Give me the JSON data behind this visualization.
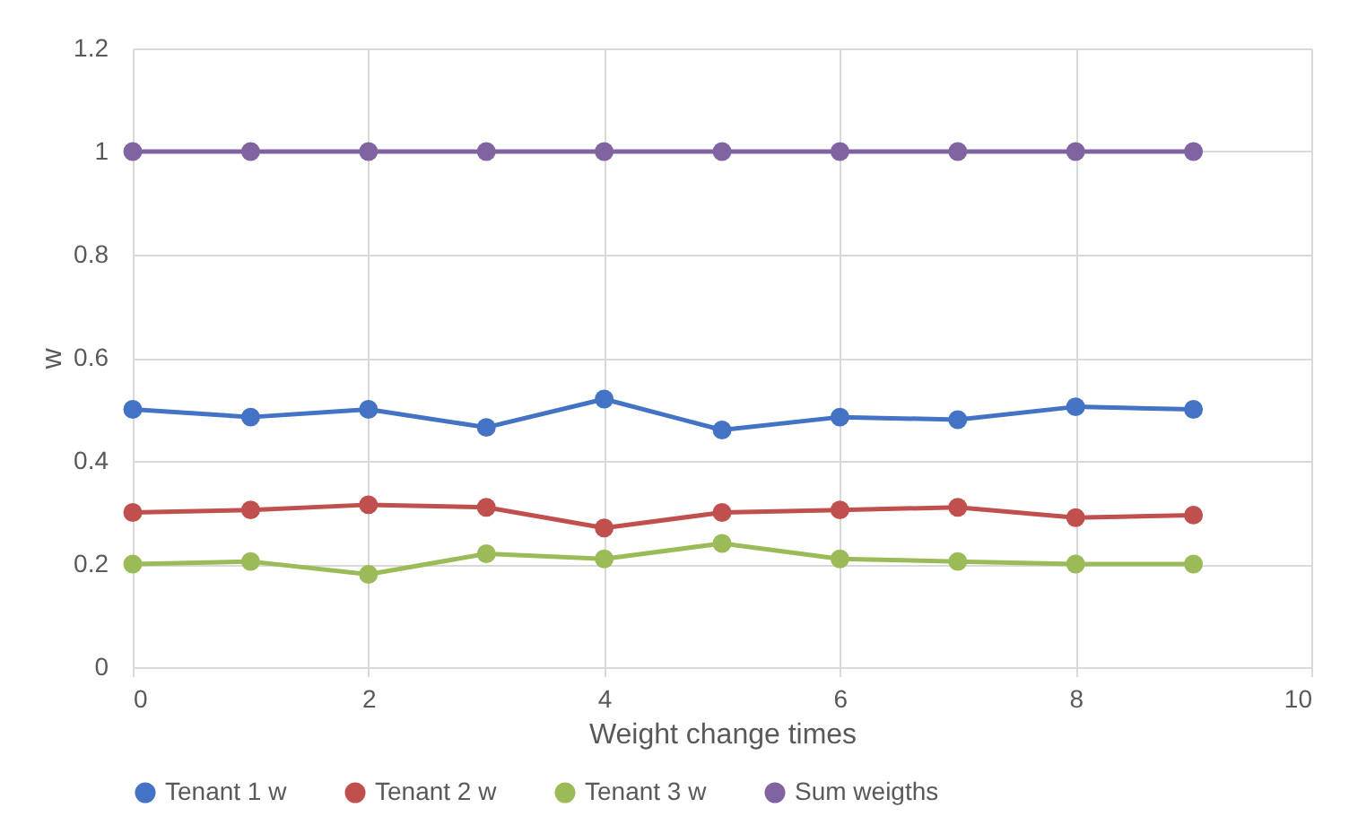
{
  "chart_data": {
    "type": "line",
    "xlabel": "Weight change times",
    "ylabel": "w",
    "x": [
      0,
      1,
      2,
      3,
      4,
      5,
      6,
      7,
      8,
      9
    ],
    "series": [
      {
        "name": "Tenant 1 w",
        "color": "#4472c4",
        "values": [
          0.5,
          0.485,
          0.5,
          0.465,
          0.52,
          0.46,
          0.485,
          0.48,
          0.505,
          0.5
        ]
      },
      {
        "name": "Tenant 2 w",
        "color": "#c0504d",
        "values": [
          0.3,
          0.305,
          0.315,
          0.31,
          0.27,
          0.3,
          0.305,
          0.31,
          0.29,
          0.295
        ]
      },
      {
        "name": "Tenant 3 w",
        "color": "#9bbb59",
        "values": [
          0.2,
          0.205,
          0.18,
          0.22,
          0.21,
          0.24,
          0.21,
          0.205,
          0.2,
          0.2
        ]
      },
      {
        "name": "Sum weigths",
        "color": "#8064a2",
        "values": [
          1,
          1,
          1,
          1,
          1,
          1,
          1,
          1,
          1,
          1
        ]
      }
    ],
    "xlim": [
      0,
      10
    ],
    "xticks": [
      0,
      2,
      4,
      6,
      8,
      10
    ],
    "ylim": [
      0,
      1.2
    ],
    "yticks": [
      0,
      0.2,
      0.4,
      0.6,
      0.8,
      1,
      1.2
    ],
    "grid": true,
    "legend": "bottom",
    "marker": "circle",
    "line_style": "solid"
  }
}
